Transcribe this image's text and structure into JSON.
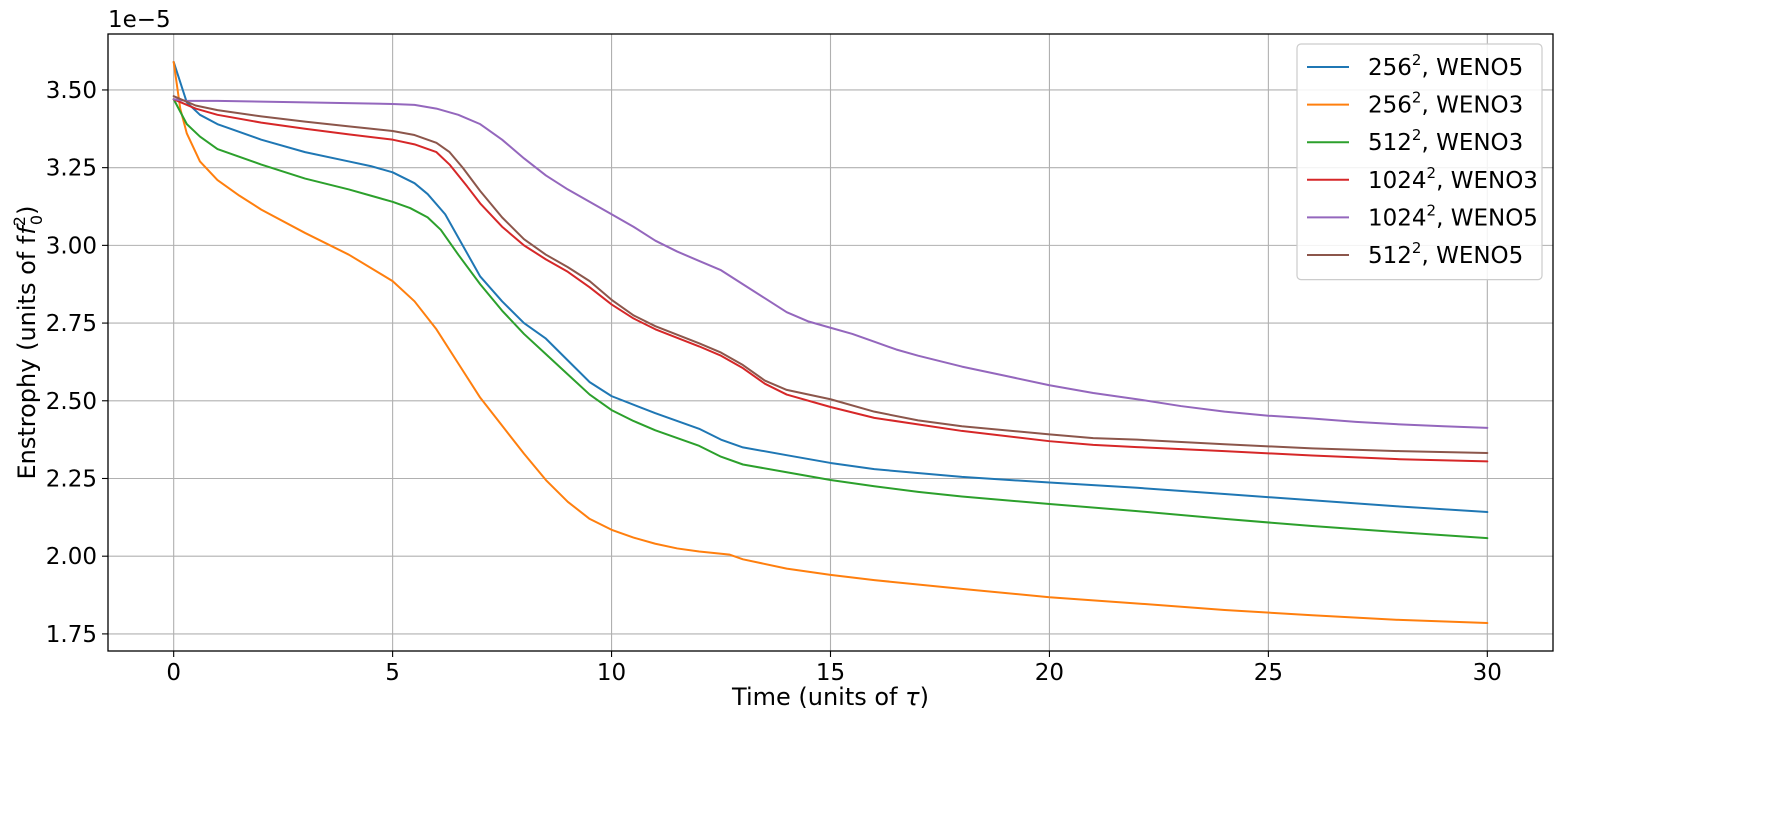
{
  "chart_data": {
    "type": "line",
    "title": "",
    "xlabel": "Time (units of τ)",
    "ylabel": "Enstrophy (units of f",
    "ylabel_sup": "2",
    "ylabel_sub": "0",
    "ylabel_close": ")",
    "offset_text": "1e−5",
    "y_multiplier": 1e-05,
    "xlim": [
      -1.5,
      31.5
    ],
    "ylim": [
      1.695,
      3.68
    ],
    "xticks": [
      0,
      5,
      10,
      15,
      20,
      25,
      30
    ],
    "yticks": [
      1.75,
      2.0,
      2.25,
      2.5,
      2.75,
      3.0,
      3.25,
      3.5
    ],
    "ytick_labels": [
      "1.75",
      "2.00",
      "2.25",
      "2.50",
      "2.75",
      "3.00",
      "3.25",
      "3.50"
    ],
    "grid": true,
    "legend_position": "top-right",
    "series": [
      {
        "name": "256",
        "sup": "2",
        "suffix": ", WENO5",
        "color": "#1f77b4",
        "points": [
          [
            0,
            3.59
          ],
          [
            0.3,
            3.46
          ],
          [
            0.6,
            3.42
          ],
          [
            1,
            3.39
          ],
          [
            2,
            3.34
          ],
          [
            3,
            3.3
          ],
          [
            4,
            3.27
          ],
          [
            4.5,
            3.255
          ],
          [
            5,
            3.235
          ],
          [
            5.5,
            3.2
          ],
          [
            5.8,
            3.165
          ],
          [
            6.2,
            3.1
          ],
          [
            6.6,
            3.0
          ],
          [
            7,
            2.9
          ],
          [
            7.5,
            2.82
          ],
          [
            8,
            2.75
          ],
          [
            8.5,
            2.7
          ],
          [
            9,
            2.63
          ],
          [
            9.5,
            2.56
          ],
          [
            10,
            2.515
          ],
          [
            11,
            2.46
          ],
          [
            12,
            2.41
          ],
          [
            12.5,
            2.375
          ],
          [
            13,
            2.35
          ],
          [
            14,
            2.325
          ],
          [
            15,
            2.3
          ],
          [
            16,
            2.28
          ],
          [
            18,
            2.255
          ],
          [
            20,
            2.237
          ],
          [
            22,
            2.22
          ],
          [
            24,
            2.2
          ],
          [
            26,
            2.18
          ],
          [
            28,
            2.16
          ],
          [
            30,
            2.142
          ]
        ]
      },
      {
        "name": "256",
        "sup": "2",
        "suffix": ", WENO3",
        "color": "#ff7f0e",
        "points": [
          [
            0,
            3.59
          ],
          [
            0.15,
            3.44
          ],
          [
            0.3,
            3.36
          ],
          [
            0.6,
            3.27
          ],
          [
            1,
            3.21
          ],
          [
            1.5,
            3.16
          ],
          [
            2,
            3.115
          ],
          [
            3,
            3.04
          ],
          [
            4,
            2.97
          ],
          [
            5,
            2.885
          ],
          [
            5.5,
            2.82
          ],
          [
            6,
            2.73
          ],
          [
            6.5,
            2.62
          ],
          [
            7,
            2.51
          ],
          [
            7.5,
            2.42
          ],
          [
            8,
            2.33
          ],
          [
            8.5,
            2.245
          ],
          [
            9,
            2.175
          ],
          [
            9.5,
            2.12
          ],
          [
            10,
            2.085
          ],
          [
            10.5,
            2.06
          ],
          [
            11,
            2.04
          ],
          [
            11.5,
            2.025
          ],
          [
            12,
            2.015
          ],
          [
            12.7,
            2.005
          ],
          [
            13,
            1.99
          ],
          [
            14,
            1.96
          ],
          [
            15,
            1.94
          ],
          [
            16,
            1.923
          ],
          [
            18,
            1.895
          ],
          [
            20,
            1.868
          ],
          [
            22,
            1.848
          ],
          [
            24,
            1.827
          ],
          [
            26,
            1.81
          ],
          [
            28,
            1.795
          ],
          [
            30,
            1.785
          ]
        ]
      },
      {
        "name": "512",
        "sup": "2",
        "suffix": ", WENO3",
        "color": "#2ca02c",
        "points": [
          [
            0,
            3.47
          ],
          [
            0.3,
            3.39
          ],
          [
            0.6,
            3.35
          ],
          [
            1,
            3.31
          ],
          [
            2,
            3.26
          ],
          [
            3,
            3.215
          ],
          [
            4,
            3.18
          ],
          [
            4.5,
            3.16
          ],
          [
            5,
            3.14
          ],
          [
            5.4,
            3.12
          ],
          [
            5.8,
            3.09
          ],
          [
            6.1,
            3.05
          ],
          [
            6.5,
            2.97
          ],
          [
            7,
            2.875
          ],
          [
            7.5,
            2.79
          ],
          [
            8,
            2.715
          ],
          [
            8.5,
            2.65
          ],
          [
            9,
            2.585
          ],
          [
            9.5,
            2.52
          ],
          [
            10,
            2.47
          ],
          [
            10.5,
            2.435
          ],
          [
            11,
            2.405
          ],
          [
            12,
            2.355
          ],
          [
            12.5,
            2.32
          ],
          [
            13,
            2.295
          ],
          [
            14,
            2.27
          ],
          [
            15,
            2.245
          ],
          [
            16,
            2.225
          ],
          [
            17,
            2.207
          ],
          [
            18,
            2.192
          ],
          [
            20,
            2.168
          ],
          [
            22,
            2.145
          ],
          [
            24,
            2.12
          ],
          [
            26,
            2.097
          ],
          [
            28,
            2.077
          ],
          [
            30,
            2.058
          ]
        ]
      },
      {
        "name": "1024",
        "sup": "2",
        "suffix": ", WENO3",
        "color": "#d62728",
        "points": [
          [
            0,
            3.47
          ],
          [
            0.5,
            3.44
          ],
          [
            1,
            3.42
          ],
          [
            2,
            3.395
          ],
          [
            3,
            3.375
          ],
          [
            4,
            3.357
          ],
          [
            5,
            3.34
          ],
          [
            5.5,
            3.325
          ],
          [
            6,
            3.3
          ],
          [
            6.3,
            3.26
          ],
          [
            6.7,
            3.19
          ],
          [
            7,
            3.135
          ],
          [
            7.5,
            3.06
          ],
          [
            8,
            3.0
          ],
          [
            8.5,
            2.955
          ],
          [
            9,
            2.915
          ],
          [
            9.5,
            2.865
          ],
          [
            10,
            2.81
          ],
          [
            10.5,
            2.765
          ],
          [
            11,
            2.73
          ],
          [
            12,
            2.675
          ],
          [
            12.5,
            2.645
          ],
          [
            13,
            2.605
          ],
          [
            13.5,
            2.555
          ],
          [
            14,
            2.52
          ],
          [
            15,
            2.48
          ],
          [
            16,
            2.445
          ],
          [
            18,
            2.403
          ],
          [
            20,
            2.37
          ],
          [
            21,
            2.358
          ],
          [
            22,
            2.351
          ],
          [
            24,
            2.338
          ],
          [
            26,
            2.324
          ],
          [
            28,
            2.312
          ],
          [
            30,
            2.305
          ]
        ]
      },
      {
        "name": "1024",
        "sup": "2",
        "suffix": ", WENO5",
        "color": "#9467bd",
        "points": [
          [
            0,
            3.47
          ],
          [
            0.3,
            3.465
          ],
          [
            1,
            3.465
          ],
          [
            3,
            3.46
          ],
          [
            5,
            3.455
          ],
          [
            5.5,
            3.452
          ],
          [
            6,
            3.44
          ],
          [
            6.5,
            3.42
          ],
          [
            7,
            3.39
          ],
          [
            7.5,
            3.34
          ],
          [
            8,
            3.28
          ],
          [
            8.5,
            3.225
          ],
          [
            9,
            3.18
          ],
          [
            10,
            3.1
          ],
          [
            10.5,
            3.06
          ],
          [
            11,
            3.015
          ],
          [
            11.5,
            2.98
          ],
          [
            12,
            2.95
          ],
          [
            12.5,
            2.92
          ],
          [
            13,
            2.875
          ],
          [
            13.5,
            2.83
          ],
          [
            14,
            2.785
          ],
          [
            14.5,
            2.755
          ],
          [
            15,
            2.735
          ],
          [
            15.5,
            2.715
          ],
          [
            16,
            2.69
          ],
          [
            16.5,
            2.665
          ],
          [
            17,
            2.645
          ],
          [
            18,
            2.61
          ],
          [
            19,
            2.58
          ],
          [
            20,
            2.55
          ],
          [
            21,
            2.525
          ],
          [
            22,
            2.505
          ],
          [
            23,
            2.483
          ],
          [
            24,
            2.465
          ],
          [
            25,
            2.452
          ],
          [
            26,
            2.443
          ],
          [
            27,
            2.432
          ],
          [
            28,
            2.424
          ],
          [
            29,
            2.418
          ],
          [
            30,
            2.413
          ]
        ]
      },
      {
        "name": "512",
        "sup": "2",
        "suffix": ", WENO5",
        "color": "#8c564b",
        "points": [
          [
            0,
            3.48
          ],
          [
            0.5,
            3.45
          ],
          [
            1,
            3.435
          ],
          [
            2,
            3.415
          ],
          [
            3,
            3.398
          ],
          [
            4,
            3.383
          ],
          [
            5,
            3.368
          ],
          [
            5.5,
            3.355
          ],
          [
            6,
            3.33
          ],
          [
            6.3,
            3.3
          ],
          [
            6.6,
            3.25
          ],
          [
            7,
            3.175
          ],
          [
            7.5,
            3.09
          ],
          [
            8,
            3.02
          ],
          [
            8.5,
            2.97
          ],
          [
            9,
            2.93
          ],
          [
            9.5,
            2.885
          ],
          [
            10,
            2.825
          ],
          [
            10.5,
            2.775
          ],
          [
            11,
            2.74
          ],
          [
            12,
            2.685
          ],
          [
            12.5,
            2.655
          ],
          [
            13,
            2.615
          ],
          [
            13.5,
            2.565
          ],
          [
            14,
            2.535
          ],
          [
            15,
            2.505
          ],
          [
            16,
            2.465
          ],
          [
            17,
            2.437
          ],
          [
            18,
            2.418
          ],
          [
            20,
            2.392
          ],
          [
            21,
            2.38
          ],
          [
            22,
            2.375
          ],
          [
            24,
            2.36
          ],
          [
            26,
            2.347
          ],
          [
            28,
            2.338
          ],
          [
            30,
            2.332
          ]
        ]
      }
    ]
  }
}
